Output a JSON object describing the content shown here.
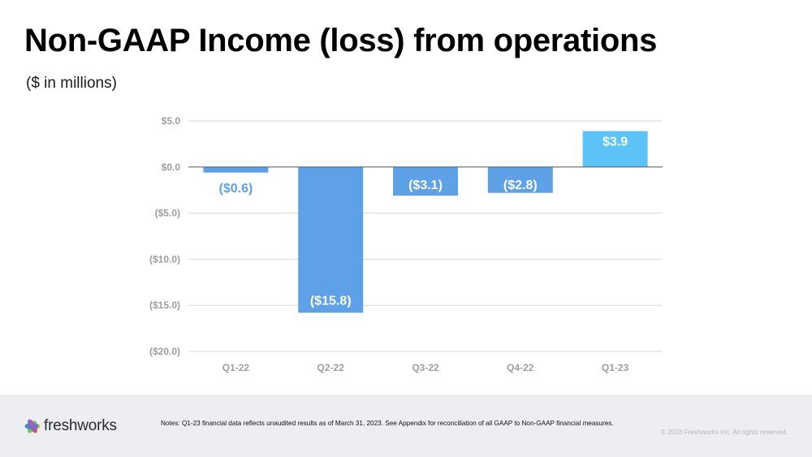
{
  "header": {
    "title": "Non-GAAP Income (loss) from operations",
    "subtitle": "($ in millions)"
  },
  "chart_data": {
    "type": "bar",
    "categories": [
      "Q1-22",
      "Q2-22",
      "Q3-22",
      "Q4-22",
      "Q1-23"
    ],
    "values": [
      -0.6,
      -15.8,
      -3.1,
      -2.8,
      3.9
    ],
    "data_labels": [
      "($0.6)",
      "($15.8)",
      "($3.1)",
      "($2.8)",
      "$3.9"
    ],
    "y_ticks": [
      5,
      0,
      -5,
      -10,
      -15,
      -20
    ],
    "y_tick_labels": [
      "$5.0",
      "$0.0",
      "($5.0)",
      "($10.0)",
      "($15.0)",
      "($20.0)"
    ],
    "ylim": [
      -20,
      5
    ],
    "grid": true,
    "title": "",
    "xlabel": "",
    "ylabel": "",
    "colors": {
      "negative": "#5ea1e6",
      "positive": "#5bc3f5",
      "grid": "#d7d7d7",
      "zero_line": "#555555",
      "tick_text": "#9e9e9e",
      "label_on_bar": "#ffffff",
      "label_off_bar": "#5ea1e6"
    }
  },
  "footer": {
    "logo_text": "freshworks",
    "notes": "Notes: Q1-23 financial data reflects unaudited results as of March 31, 2023. See Appendix for reconciliation of all GAAP to Non-GAAP financial measures.",
    "copyright": "© 2023 Freshworks Inc. All rights reserved.",
    "logo_colors": [
      "#f2b01e",
      "#e8493f",
      "#6cc04a",
      "#2a8fd6",
      "#9b5fc0"
    ]
  }
}
